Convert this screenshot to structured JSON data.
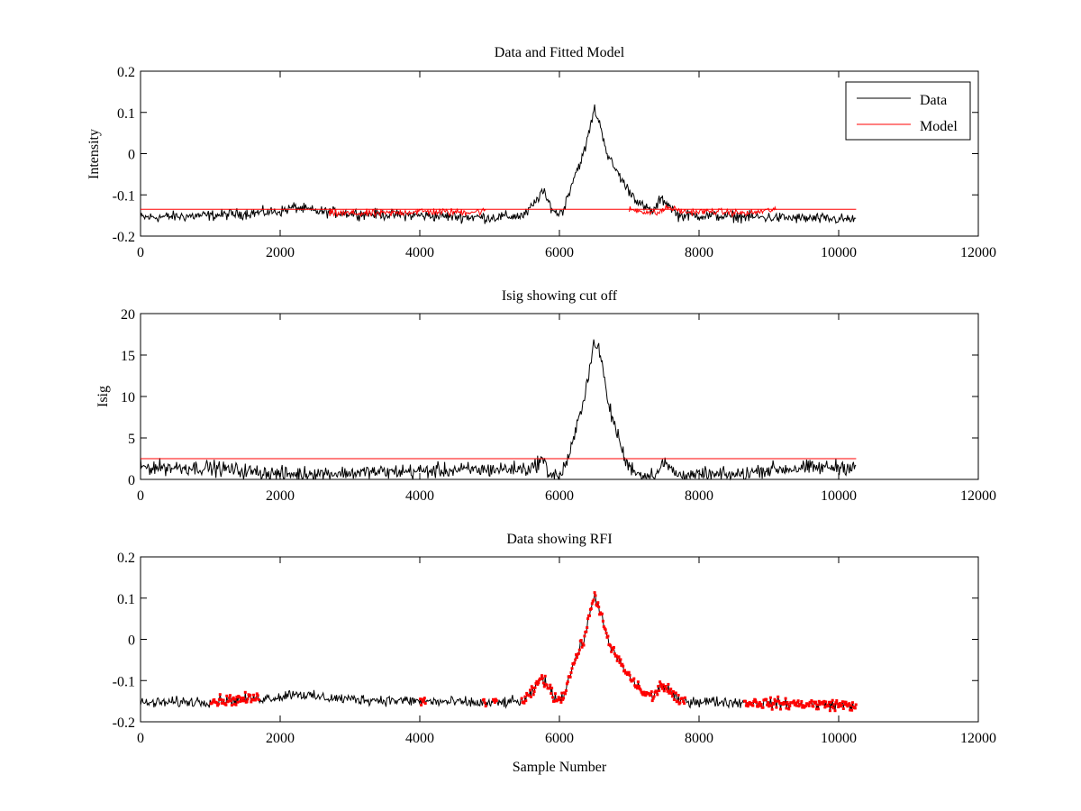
{
  "figure": {
    "background": "#ffffff",
    "colors": {
      "data": "#000000",
      "model": "#ff0000",
      "rfi": "#ff0000",
      "cutoff": "#ff0000"
    }
  },
  "chart_data": [
    {
      "type": "line",
      "title": "Data and Fitted Model",
      "xlabel": "",
      "ylabel": "Intensity",
      "xlim": [
        0,
        12000
      ],
      "ylim": [
        -0.2,
        0.2
      ],
      "xticks": [
        "0",
        "2000",
        "4000",
        "6000",
        "8000",
        "10000",
        "12000"
      ],
      "yticks": [
        "-0.2",
        "-0.1",
        "0",
        "0.1",
        "0.2"
      ],
      "grid": false,
      "legend": {
        "placement": "top-right",
        "entries": [
          "Data",
          "Model"
        ]
      },
      "series": [
        {
          "name": "Data",
          "color": "#000000",
          "noise": 0.01,
          "x": [
            0,
            1000,
            2000,
            2200,
            2500,
            3000,
            4000,
            5000,
            5500,
            5650,
            5750,
            5850,
            5950,
            6050,
            6200,
            6350,
            6450,
            6500,
            6600,
            6700,
            6850,
            6950,
            7050,
            7200,
            7350,
            7450,
            7550,
            7700,
            8000,
            9000,
            10250
          ],
          "y": [
            -0.155,
            -0.15,
            -0.14,
            -0.13,
            -0.14,
            -0.145,
            -0.15,
            -0.155,
            -0.15,
            -0.12,
            -0.09,
            -0.12,
            -0.145,
            -0.14,
            -0.06,
            0.0,
            0.07,
            0.11,
            0.06,
            -0.01,
            -0.05,
            -0.08,
            -0.1,
            -0.13,
            -0.14,
            -0.11,
            -0.12,
            -0.15,
            -0.15,
            -0.155,
            -0.16
          ]
        },
        {
          "name": "Model",
          "color": "#ff0000",
          "noise": 0,
          "x": [
            0,
            10250
          ],
          "y": [
            -0.135,
            -0.135
          ]
        },
        {
          "name": "Model",
          "color": "#ff0000",
          "noise": 0.007,
          "x": [
            2700,
            3500,
            4000,
            4500,
            4950
          ],
          "y": [
            -0.145,
            -0.145,
            -0.14,
            -0.142,
            -0.14
          ]
        },
        {
          "name": "Model",
          "color": "#ff0000",
          "noise": 0.006,
          "x": [
            7000,
            7400,
            7550,
            7800,
            8200,
            8700,
            9100
          ],
          "y": [
            -0.135,
            -0.145,
            -0.13,
            -0.142,
            -0.14,
            -0.145,
            -0.135
          ]
        }
      ]
    },
    {
      "type": "line",
      "title": "Isig showing cut off",
      "xlabel": "",
      "ylabel": "Isig",
      "xlim": [
        0,
        12000
      ],
      "ylim": [
        0,
        20
      ],
      "xticks": [
        "0",
        "2000",
        "4000",
        "6000",
        "8000",
        "10000",
        "12000"
      ],
      "yticks": [
        "0",
        "5",
        "10",
        "15",
        "20"
      ],
      "grid": false,
      "series": [
        {
          "name": "Isig",
          "color": "#000000",
          "noise": 0.7,
          "clip_min": 0,
          "x": [
            0,
            1000,
            1500,
            2000,
            3000,
            4000,
            5000,
            5600,
            5750,
            5850,
            6000,
            6150,
            6300,
            6450,
            6500,
            6600,
            6700,
            6850,
            6950,
            7200,
            7400,
            7500,
            7700,
            8500,
            9000,
            10000,
            10250
          ],
          "y": [
            1.5,
            1.4,
            1.0,
            0.6,
            0.8,
            1.0,
            1.2,
            1.3,
            2.5,
            0.8,
            0.3,
            3.0,
            8.0,
            14.0,
            17.0,
            14.5,
            9.0,
            5.0,
            2.0,
            0.3,
            0.8,
            2.0,
            0.5,
            0.5,
            1.2,
            1.5,
            1.6
          ]
        },
        {
          "name": "cut off",
          "color": "#ff0000",
          "noise": 0,
          "x": [
            0,
            10250
          ],
          "y": [
            2.5,
            2.5
          ]
        }
      ]
    },
    {
      "type": "scatter",
      "title": "Data showing RFI",
      "xlabel": "Sample Number",
      "ylabel": "",
      "xlim": [
        0,
        12000
      ],
      "ylim": [
        -0.2,
        0.2
      ],
      "xticks": [
        "0",
        "2000",
        "4000",
        "6000",
        "8000",
        "10000",
        "12000"
      ],
      "yticks": [
        "-0.2",
        "-0.1",
        "0",
        "0.1",
        "0.2"
      ],
      "grid": false,
      "series": [
        {
          "name": "Data",
          "color": "#000000",
          "noise": 0.01,
          "x": [
            0,
            1000,
            2000,
            2200,
            2500,
            3000,
            4000,
            5000,
            5500,
            5650,
            5750,
            5850,
            5950,
            6050,
            6200,
            6350,
            6450,
            6500,
            6600,
            6700,
            6850,
            6950,
            7050,
            7200,
            7350,
            7450,
            7550,
            7700,
            8000,
            9000,
            10250
          ],
          "y": [
            -0.155,
            -0.15,
            -0.14,
            -0.13,
            -0.14,
            -0.145,
            -0.15,
            -0.155,
            -0.15,
            -0.12,
            -0.09,
            -0.12,
            -0.145,
            -0.14,
            -0.06,
            0.0,
            0.07,
            0.11,
            0.06,
            -0.01,
            -0.05,
            -0.08,
            -0.1,
            -0.13,
            -0.14,
            -0.11,
            -0.12,
            -0.15,
            -0.15,
            -0.155,
            -0.16
          ]
        }
      ],
      "rfi_ranges": [
        {
          "x": [
            1000,
            1700
          ]
        },
        {
          "x": [
            4000,
            4080
          ]
        },
        {
          "x": [
            4900,
            4950
          ]
        },
        {
          "x": [
            5050,
            5100
          ]
        },
        {
          "x": [
            5450,
            7800
          ]
        },
        {
          "x": [
            8650,
            10250
          ]
        }
      ],
      "rfi_color": "#ff0000"
    }
  ]
}
